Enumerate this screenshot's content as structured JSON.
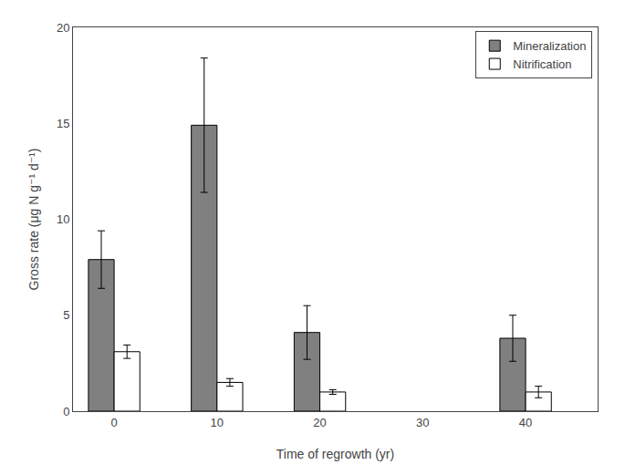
{
  "chart_data": {
    "type": "bar",
    "xlabel": "Time of regrowth (yr)",
    "ylabel": "Gross rate (μg N g⁻¹ d⁻¹)",
    "x": [
      0,
      10,
      20,
      40
    ],
    "series": [
      {
        "name": "Mineralization",
        "color": "#808080",
        "values": [
          7.9,
          14.9,
          4.1,
          3.8
        ],
        "errors": [
          1.5,
          3.5,
          1.4,
          1.2
        ]
      },
      {
        "name": "Nitrification",
        "color": "#ffffff",
        "values": [
          3.1,
          1.5,
          1.0,
          1.0
        ],
        "errors": [
          0.35,
          0.2,
          0.12,
          0.3
        ]
      }
    ],
    "xlim": [
      -4,
      47
    ],
    "xticks": [
      0,
      10,
      20,
      30,
      40
    ],
    "ylim": [
      0,
      20
    ],
    "yticks": [
      0,
      5,
      10,
      15,
      20
    ],
    "grid": false,
    "legend": "upper right"
  }
}
